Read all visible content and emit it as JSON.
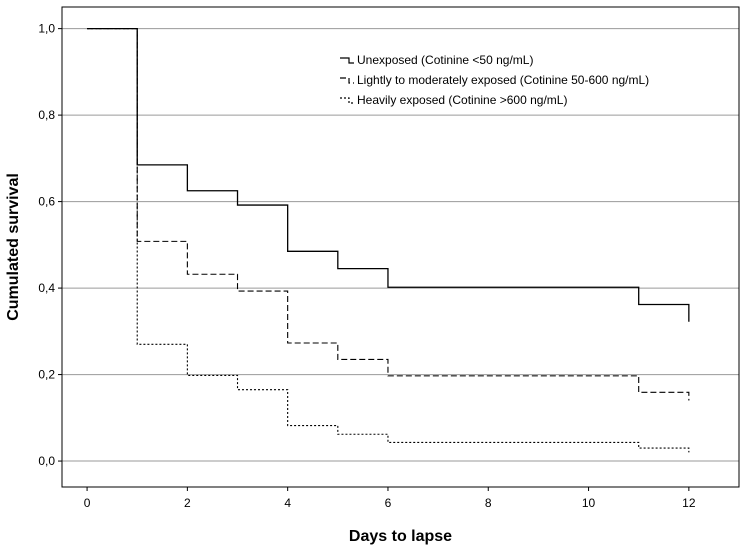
{
  "chart_data": {
    "type": "line",
    "subtype": "step",
    "xlabel": "Days to lapse",
    "ylabel": "Cumulated survival",
    "xlim": [
      -0.5,
      13
    ],
    "ylim": [
      -0.06,
      1.05
    ],
    "x_ticks": [
      0,
      2,
      4,
      6,
      8,
      10,
      12
    ],
    "x_tick_labels": [
      "0",
      "2",
      "4",
      "6",
      "8",
      "10",
      "12"
    ],
    "y_ticks": [
      0.0,
      0.2,
      0.4,
      0.6,
      0.8,
      1.0
    ],
    "y_tick_labels": [
      "0,0",
      "0,2",
      "0,4",
      "0,6",
      "0,8",
      "1,0"
    ],
    "grid": "horizontal",
    "legend_position": "top-right",
    "series": [
      {
        "name": "Unexposed (Cotinine <50 ng/mL)",
        "style": "solid",
        "x": [
          0,
          1,
          2,
          3,
          4,
          5,
          6,
          11,
          12
        ],
        "y": [
          1.0,
          0.685,
          0.625,
          0.592,
          0.485,
          0.445,
          0.402,
          0.362,
          0.322
        ]
      },
      {
        "name": "Lightly to moderately exposed (Cotinine 50-600 ng/mL)",
        "style": "dashed",
        "x": [
          0,
          1,
          2,
          3,
          4,
          5,
          6,
          11,
          12
        ],
        "y": [
          1.0,
          0.508,
          0.432,
          0.393,
          0.273,
          0.235,
          0.197,
          0.159,
          0.14
        ]
      },
      {
        "name": "Heavily exposed (Cotinine >600 ng/mL)",
        "style": "dotted",
        "x": [
          0,
          1,
          2,
          3,
          4,
          5,
          6,
          11,
          12
        ],
        "y": [
          1.0,
          0.27,
          0.198,
          0.165,
          0.082,
          0.062,
          0.043,
          0.03,
          0.02
        ]
      }
    ]
  }
}
